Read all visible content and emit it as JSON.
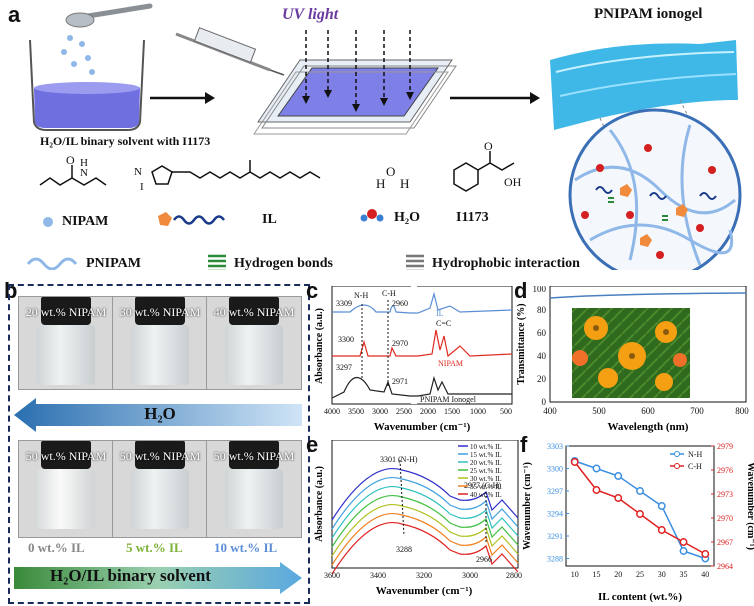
{
  "panel_labels": {
    "a": "a",
    "b": "b",
    "c": "c",
    "d": "d",
    "e": "e",
    "f": "f"
  },
  "panel_a": {
    "uv_light": "UV light",
    "ionogel_title": "PNIPAM ionogel",
    "beaker_caption": "H₂O/IL binary solvent with I1173",
    "legend": {
      "nipam": "NIPAM",
      "il": "IL",
      "h2o": "H₂O",
      "i1173": "I1173",
      "pnipam": "PNIPAM",
      "hbond": "Hydrogen bonds",
      "hydrophobic": "Hydrophobic interaction"
    }
  },
  "panel_b": {
    "top_vials": [
      "20 wt.% NIPAM",
      "30 wt.% NIPAM",
      "40 wt.% NIPAM"
    ],
    "bottom_vials": [
      "50 wt.% NIPAM",
      "50 wt.% NIPAM",
      "50 wt.% NIPAM"
    ],
    "arrow_top": "H₂O",
    "il_labels": [
      "0 wt.% IL",
      "5 wt.% IL",
      "10 wt.% IL"
    ],
    "arrow_bottom": "H₂O/IL binary solvent",
    "colors": {
      "il0": "#888888",
      "il5": "#7fb23a",
      "il10": "#5d8fd6"
    }
  },
  "panel_c": {
    "ylabel": "Absorbance (a.u.)",
    "xlabel": "Wavenumber (cm⁻¹)",
    "ticks": [
      "4000",
      "3500",
      "3000",
      "2500",
      "2000",
      "1500",
      "1000",
      "500"
    ],
    "annotations": [
      "N-H",
      "C-H",
      "3309",
      "2960",
      "3300",
      "2970",
      "C=C",
      "3297",
      "2971"
    ],
    "traces": [
      "IL",
      "NIPAM",
      "PNIPAM Ionogel"
    ]
  },
  "panel_d": {
    "ylabel": "Transmittance (%)",
    "xlabel": "Wavelength (nm)",
    "xticks": [
      "400",
      "500",
      "600",
      "700",
      "800"
    ],
    "yticks": [
      "0",
      "20",
      "40",
      "60",
      "80",
      "100"
    ]
  },
  "panel_e": {
    "ylabel": "Absorbance (a.u.)",
    "xlabel": "Wavenumber (cm⁻¹)",
    "xticks": [
      "3600",
      "3400",
      "3200",
      "3000",
      "2800"
    ],
    "annotations": [
      "3301 (N-H)",
      "3288",
      "2977 (C-H)",
      "2966"
    ],
    "legend": [
      "10 wt.% IL",
      "15 wt.% IL",
      "20 wt.% IL",
      "25 wt.% IL",
      "30 wt.% IL",
      "35 wt.% IL",
      "40 wt.% IL"
    ],
    "colors": [
      "#3030c8",
      "#3fa0e0",
      "#30c0c0",
      "#40c040",
      "#b0c020",
      "#f08020",
      "#e02020"
    ]
  },
  "chart_data": {
    "type": "line",
    "title": "",
    "xlabel": "IL content (wt.%)",
    "ylabel": "Wavenumber (cm⁻¹)",
    "y2label": "Wavenumber (cm⁻¹)",
    "x": [
      10,
      15,
      20,
      25,
      30,
      35,
      40
    ],
    "xticks": [
      "10",
      "15",
      "20",
      "25",
      "30",
      "35",
      "40"
    ],
    "ylim": [
      3287,
      3303
    ],
    "yticks": [
      "3288",
      "3291",
      "3294",
      "3297",
      "3300",
      "3303"
    ],
    "y2lim": [
      2964,
      2979
    ],
    "y2ticks": [
      "2964",
      "2967",
      "2970",
      "2973",
      "2976",
      "2979"
    ],
    "series": [
      {
        "name": "N-H",
        "axis": "left",
        "color": "#3a8fe0",
        "values": [
          3301,
          3300,
          3299,
          3297,
          3295,
          3289,
          3288
        ]
      },
      {
        "name": "C-H",
        "axis": "right",
        "color": "#e02020",
        "values": [
          2977,
          2973.5,
          2972.5,
          2970.5,
          2968.5,
          2967,
          2965.5
        ]
      }
    ]
  }
}
